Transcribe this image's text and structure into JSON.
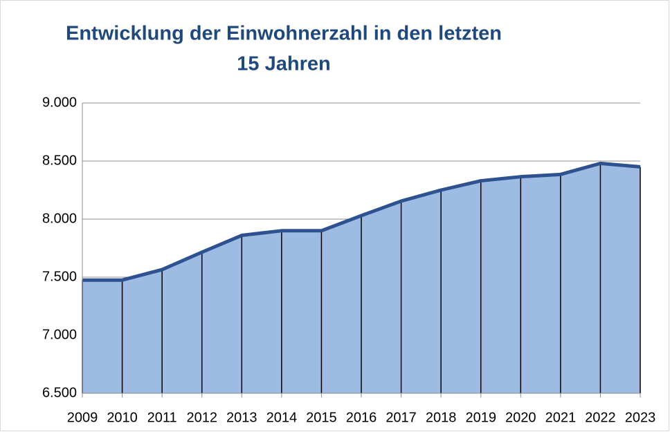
{
  "chart_data": {
    "type": "area",
    "title": [
      "Entwicklung der Einwohnerzahl in den letzten",
      "15 Jahren"
    ],
    "categories": [
      "2009",
      "2010",
      "2011",
      "2012",
      "2013",
      "2014",
      "2015",
      "2016",
      "2017",
      "2018",
      "2019",
      "2020",
      "2021",
      "2022",
      "2023"
    ],
    "values": [
      7475,
      7475,
      7565,
      7715,
      7860,
      7900,
      7900,
      8030,
      8155,
      8250,
      8330,
      8365,
      8385,
      8480,
      8450
    ],
    "color": "#9dbbe3",
    "line_color": "#2e5290",
    "ylim": [
      6500,
      9000
    ],
    "yticks": [
      {
        "value": 6500,
        "label": "6.500"
      },
      {
        "value": 7000,
        "label": "7.000"
      },
      {
        "value": 7500,
        "label": "7.500"
      },
      {
        "value": 8000,
        "label": "8.000"
      },
      {
        "value": 8500,
        "label": "8.500"
      },
      {
        "value": 9000,
        "label": "9.000"
      }
    ],
    "grid": true
  }
}
